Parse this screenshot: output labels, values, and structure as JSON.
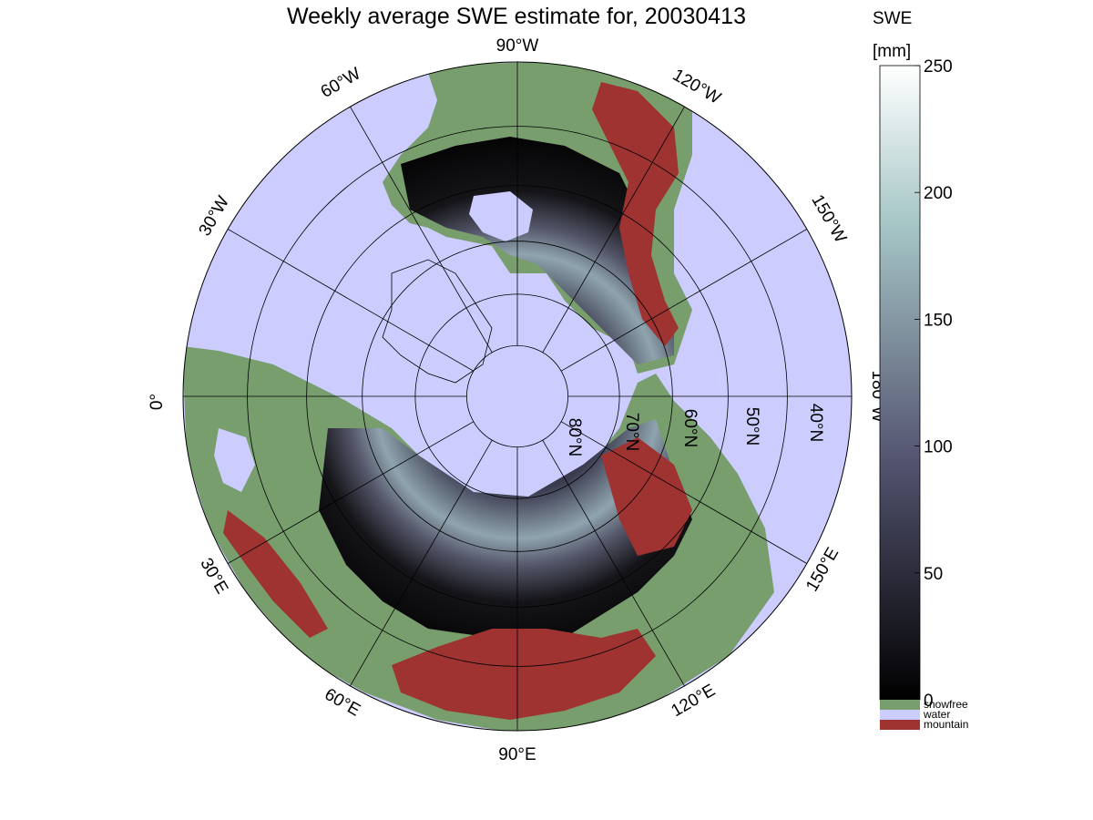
{
  "title": "Weekly average SWE estimate for, 20030413",
  "colorbar": {
    "title_line1": "SWE",
    "title_line2": "[mm]",
    "ticks": [
      "0",
      "50",
      "100",
      "150",
      "200",
      "250"
    ],
    "range": [
      0,
      250
    ],
    "colormap": "bone",
    "categories": [
      {
        "label": "snowfree",
        "color": "#789E6E"
      },
      {
        "label": "water",
        "color": "#CCCCFF"
      },
      {
        "label": "mountain",
        "color": "#9E3331"
      }
    ]
  },
  "map": {
    "projection": "north polar stereographic",
    "ocean_color": "#CCCCFF",
    "land_color": "#789E6E",
    "mountain_color": "#9E3331",
    "longitude_labels": {
      "lon_90W": "90°W",
      "lon_120W": "120°W",
      "lon_150W": "150°W",
      "lon_180W": "180°W",
      "lon_150E": "150°E",
      "lon_120E": "120°E",
      "lon_90E": "90°E",
      "lon_60E": "60°E",
      "lon_30E": "30°E",
      "lon_0": "0°",
      "lon_30W": "30°W",
      "lon_60W": "60°W"
    },
    "latitude_labels": {
      "lat_80N": "80°N",
      "lat_70N": "70°N",
      "lat_60N": "60°N",
      "lat_50N": "50°N",
      "lat_40N": "40°N"
    },
    "latitude_circles_deg": [
      80,
      70,
      60,
      50,
      40
    ]
  }
}
